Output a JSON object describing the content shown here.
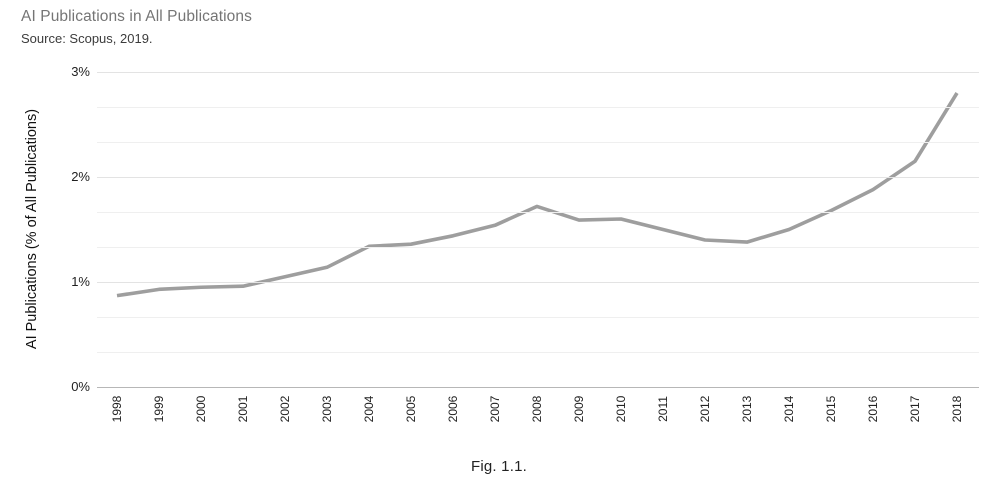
{
  "header": {
    "title": "AI Publications in All Publications",
    "source": "Source: Scopus, 2019."
  },
  "caption": "Fig. 1.1.",
  "chart_data": {
    "type": "line",
    "title": "AI Publications in All Publications",
    "subtitle": "Source: Scopus, 2019.",
    "xlabel": "",
    "ylabel": "AI Publications (% of All Publications)",
    "x": [
      1998,
      1999,
      2000,
      2001,
      2002,
      2003,
      2004,
      2005,
      2006,
      2007,
      2008,
      2009,
      2010,
      2011,
      2012,
      2013,
      2014,
      2015,
      2016,
      2017,
      2018
    ],
    "series": [
      {
        "name": "AI Publications (% of All Publications)",
        "values": [
          0.87,
          0.93,
          0.95,
          0.96,
          1.05,
          1.14,
          1.34,
          1.36,
          1.44,
          1.54,
          1.72,
          1.59,
          1.6,
          1.5,
          1.4,
          1.38,
          1.5,
          1.68,
          1.88,
          2.15,
          2.8
        ]
      }
    ],
    "ylim": [
      0,
      3
    ],
    "ytick_values": [
      0,
      1,
      2,
      3
    ],
    "ytick_labels": [
      "0%",
      "1%",
      "2%",
      "3%"
    ],
    "minor_gridlines_per_major": 3,
    "grid": true,
    "legend_position": "none",
    "line_color": "#9e9e9e",
    "major_grid_color": "#e3e3e3",
    "minor_grid_color": "#efefef",
    "baseline_color": "#b7b7b7"
  }
}
